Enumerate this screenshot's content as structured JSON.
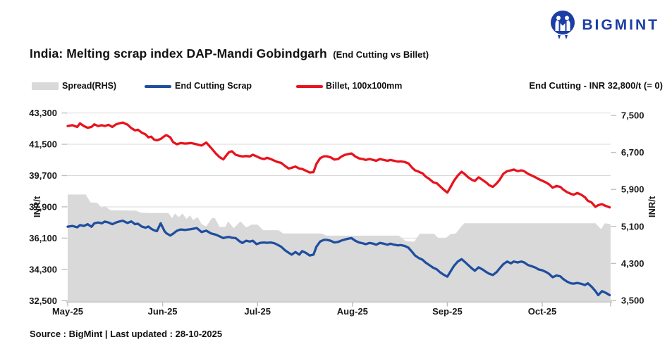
{
  "logo": {
    "text": "BIGMINT",
    "color": "#1c3ea5"
  },
  "title": {
    "main": "India: Melting scrap index DAP-Mandi Gobindgarh",
    "suffix": "(End Cutting vs Billet)"
  },
  "annotation": "End Cutting - INR 32,800/t (= 0)",
  "footer": "Source : BigMint | Last updated : 28-10-2025",
  "colors": {
    "spread": "#d9d9d9",
    "scrap": "#1f4e9f",
    "billet": "#e8131c",
    "grid": "#d9d9d9",
    "axis_text": "#1a1a1a",
    "tick": "#bfbfbf"
  },
  "chart_data": {
    "type": "line+area",
    "title": "India: Melting scrap index DAP-Mandi Gobindgarh (End Cutting vs Billet)",
    "grid": "horizontal",
    "legend_position": "top-left",
    "x_axis": {
      "unit": "months since 01-May-2025",
      "t_end": 5.72,
      "ticks": [
        {
          "t": 0,
          "label": "May-25"
        },
        {
          "t": 1,
          "label": "Jun-25"
        },
        {
          "t": 2,
          "label": "Jul-25"
        },
        {
          "t": 3,
          "label": "Aug-25"
        },
        {
          "t": 4,
          "label": "Sep-25"
        },
        {
          "t": 5,
          "label": "Oct-25"
        }
      ]
    },
    "left_axis": {
      "title": "INR/t",
      "min": 32500,
      "max": 43300,
      "ticks": [
        43300,
        41500,
        39700,
        37900,
        36100,
        34300,
        32500
      ],
      "tick_labels": [
        "43,300",
        "41,500",
        "39,700",
        "37,900",
        "36,100",
        "34,300",
        "32,500"
      ]
    },
    "right_axis": {
      "title": "INR/t",
      "min": 3500,
      "max": 7500,
      "ticks": [
        7500,
        6700,
        5900,
        5100,
        4300,
        3500
      ],
      "tick_labels": [
        "7,500",
        "6,700",
        "5,900",
        "5,100",
        "4,300",
        "3,500"
      ]
    },
    "x": [
      0.0,
      0.05,
      0.1,
      0.13,
      0.17,
      0.21,
      0.25,
      0.28,
      0.32,
      0.36,
      0.39,
      0.43,
      0.47,
      0.51,
      0.54,
      0.58,
      0.63,
      0.67,
      0.71,
      0.74,
      0.78,
      0.82,
      0.85,
      0.88,
      0.91,
      0.94,
      0.98,
      1.02,
      1.04,
      1.08,
      1.11,
      1.15,
      1.19,
      1.24,
      1.3,
      1.36,
      1.41,
      1.46,
      1.51,
      1.56,
      1.6,
      1.64,
      1.67,
      1.7,
      1.73,
      1.77,
      1.81,
      1.84,
      1.88,
      1.92,
      1.95,
      1.99,
      2.03,
      2.07,
      2.1,
      2.14,
      2.18,
      2.21,
      2.25,
      2.29,
      2.33,
      2.36,
      2.4,
      2.44,
      2.47,
      2.51,
      2.55,
      2.59,
      2.62,
      2.66,
      2.7,
      2.73,
      2.77,
      2.81,
      2.85,
      2.88,
      2.92,
      2.96,
      2.99,
      3.03,
      3.07,
      3.11,
      3.14,
      3.18,
      3.22,
      3.25,
      3.29,
      3.33,
      3.37,
      3.4,
      3.44,
      3.48,
      3.51,
      3.55,
      3.59,
      3.63,
      3.66,
      3.7,
      3.74,
      3.77,
      3.81,
      3.85,
      3.89,
      3.92,
      3.96,
      4.0,
      4.03,
      4.07,
      4.11,
      4.15,
      4.18,
      4.22,
      4.26,
      4.29,
      4.33,
      4.37,
      4.41,
      4.44,
      4.48,
      4.52,
      4.55,
      4.59,
      4.63,
      4.67,
      4.7,
      4.74,
      4.78,
      4.81,
      4.85,
      4.89,
      4.93,
      4.96,
      5.0,
      5.04,
      5.07,
      5.11,
      5.15,
      5.19,
      5.22,
      5.26,
      5.3,
      5.33,
      5.37,
      5.41,
      5.45,
      5.48,
      5.52,
      5.56,
      5.59,
      5.63,
      5.67,
      5.71
    ],
    "series": [
      {
        "name": "Spread(RHS)",
        "type": "area",
        "axis": "right",
        "color": "#d9d9d9",
        "points": [
          [
            0.0,
            5790
          ],
          [
            0.19,
            5790
          ],
          [
            0.24,
            5620
          ],
          [
            0.31,
            5610
          ],
          [
            0.36,
            5500
          ],
          [
            0.39,
            5540
          ],
          [
            0.45,
            5450
          ],
          [
            0.72,
            5440
          ],
          [
            0.77,
            5400
          ],
          [
            0.86,
            5390
          ],
          [
            1.06,
            5390
          ],
          [
            1.1,
            5280
          ],
          [
            1.13,
            5380
          ],
          [
            1.17,
            5300
          ],
          [
            1.21,
            5380
          ],
          [
            1.25,
            5260
          ],
          [
            1.29,
            5340
          ],
          [
            1.32,
            5240
          ],
          [
            1.37,
            5300
          ],
          [
            1.41,
            5150
          ],
          [
            1.46,
            5100
          ],
          [
            1.52,
            5280
          ],
          [
            1.55,
            5280
          ],
          [
            1.6,
            5090
          ],
          [
            1.66,
            5090
          ],
          [
            1.69,
            5210
          ],
          [
            1.75,
            5060
          ],
          [
            1.82,
            5210
          ],
          [
            1.88,
            5080
          ],
          [
            1.94,
            5140
          ],
          [
            2.0,
            5140
          ],
          [
            2.06,
            5020
          ],
          [
            2.22,
            5020
          ],
          [
            2.27,
            4950
          ],
          [
            2.67,
            4950
          ],
          [
            2.73,
            4900
          ],
          [
            3.49,
            4900
          ],
          [
            3.56,
            4780
          ],
          [
            3.65,
            4770
          ],
          [
            3.71,
            4940
          ],
          [
            3.86,
            4940
          ],
          [
            3.91,
            4840
          ],
          [
            3.98,
            4840
          ],
          [
            4.03,
            4930
          ],
          [
            4.09,
            4950
          ],
          [
            4.14,
            5080
          ],
          [
            4.18,
            5170
          ],
          [
            5.56,
            5170
          ],
          [
            5.62,
            5040
          ],
          [
            5.66,
            5170
          ],
          [
            5.72,
            5150
          ]
        ]
      },
      {
        "name": "End Cutting Scrap",
        "type": "line",
        "axis": "left",
        "color": "#1f4e9f",
        "values": [
          36760,
          36800,
          36720,
          36850,
          36800,
          36900,
          36750,
          36950,
          37000,
          36950,
          37050,
          37000,
          36900,
          37000,
          37050,
          37100,
          36970,
          37060,
          36900,
          36930,
          36770,
          36700,
          36770,
          36640,
          36550,
          36500,
          36950,
          36500,
          36380,
          36250,
          36350,
          36520,
          36600,
          36570,
          36620,
          36680,
          36450,
          36530,
          36370,
          36300,
          36200,
          36100,
          36150,
          36170,
          36120,
          36100,
          35920,
          35820,
          35950,
          35900,
          35950,
          35750,
          35830,
          35850,
          35830,
          35850,
          35800,
          35720,
          35600,
          35400,
          35250,
          35150,
          35300,
          35150,
          35350,
          35250,
          35100,
          35150,
          35600,
          35900,
          36000,
          36000,
          35950,
          35850,
          35880,
          35950,
          36020,
          36070,
          36100,
          35950,
          35850,
          35800,
          35750,
          35820,
          35780,
          35720,
          35820,
          35780,
          35720,
          35780,
          35720,
          35680,
          35700,
          35650,
          35550,
          35300,
          35100,
          34950,
          34850,
          34700,
          34550,
          34400,
          34300,
          34150,
          34000,
          33880,
          34150,
          34500,
          34750,
          34890,
          34750,
          34550,
          34350,
          34220,
          34420,
          34300,
          34150,
          34050,
          33980,
          34150,
          34350,
          34600,
          34750,
          34650,
          34750,
          34700,
          34750,
          34700,
          34550,
          34480,
          34400,
          34300,
          34250,
          34150,
          34050,
          33850,
          33950,
          33900,
          33750,
          33600,
          33500,
          33480,
          33520,
          33470,
          33400,
          33500,
          33300,
          33050,
          32820,
          33050,
          32950,
          32820
        ]
      },
      {
        "name": "Billet, 100x100mm",
        "type": "line",
        "axis": "left",
        "color": "#e8131c",
        "values": [
          42550,
          42600,
          42500,
          42700,
          42550,
          42450,
          42500,
          42650,
          42550,
          42600,
          42550,
          42620,
          42500,
          42650,
          42700,
          42750,
          42630,
          42430,
          42300,
          42340,
          42170,
          42070,
          41900,
          41940,
          41770,
          41730,
          41810,
          41970,
          42030,
          41900,
          41630,
          41500,
          41570,
          41540,
          41570,
          41500,
          41430,
          41600,
          41300,
          40970,
          40760,
          40630,
          40850,
          41050,
          41100,
          40900,
          40830,
          40800,
          40820,
          40800,
          40900,
          40800,
          40700,
          40650,
          40720,
          40650,
          40550,
          40480,
          40430,
          40250,
          40100,
          40150,
          40220,
          40100,
          40080,
          39980,
          39880,
          39900,
          40370,
          40700,
          40810,
          40810,
          40750,
          40620,
          40650,
          40780,
          40890,
          40940,
          40970,
          40800,
          40690,
          40650,
          40600,
          40650,
          40600,
          40550,
          40650,
          40600,
          40550,
          40600,
          40550,
          40500,
          40520,
          40480,
          40400,
          40150,
          40000,
          39920,
          39820,
          39650,
          39500,
          39320,
          39250,
          39100,
          38900,
          38720,
          39000,
          39400,
          39700,
          39920,
          39800,
          39600,
          39450,
          39390,
          39600,
          39450,
          39300,
          39150,
          39050,
          39250,
          39450,
          39800,
          39950,
          40000,
          40050,
          39950,
          40000,
          39950,
          39800,
          39700,
          39600,
          39500,
          39400,
          39300,
          39200,
          39000,
          39100,
          39050,
          38900,
          38750,
          38650,
          38600,
          38700,
          38600,
          38450,
          38250,
          38150,
          37900,
          38000,
          38050,
          37950,
          37870
        ]
      }
    ]
  },
  "legend": {
    "items": [
      {
        "label": "Spread(RHS)"
      },
      {
        "label": "End Cutting Scrap"
      },
      {
        "label": "Billet, 100x100mm"
      }
    ]
  }
}
